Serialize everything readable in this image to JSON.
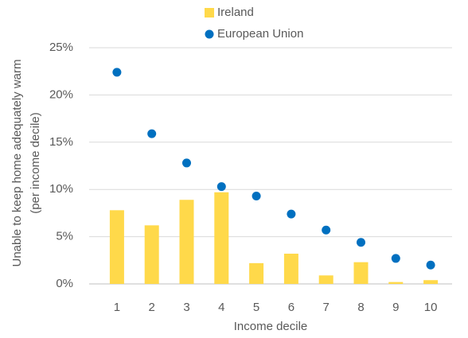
{
  "chart_data": {
    "type": "bar",
    "ylabel": [
      "Unable to keep home adequately warm",
      "(per income decile)"
    ],
    "xlabel": "Income decile",
    "categories": [
      "1",
      "2",
      "3",
      "4",
      "5",
      "6",
      "7",
      "8",
      "9",
      "10"
    ],
    "series": [
      {
        "name": "Ireland",
        "type": "bar",
        "color": "#ffd94a",
        "values": [
          7.8,
          6.2,
          8.9,
          9.7,
          2.2,
          3.2,
          0.9,
          2.3,
          0.2,
          0.4
        ]
      },
      {
        "name": "European Union",
        "type": "scatter",
        "color": "#0070c0",
        "values": [
          22.4,
          15.9,
          12.8,
          10.3,
          9.3,
          7.4,
          5.7,
          4.4,
          2.7,
          2.0
        ]
      }
    ],
    "ylim": [
      0,
      25
    ],
    "yticks": [
      {
        "value": 0,
        "label": "0%"
      },
      {
        "value": 5,
        "label": "5%"
      },
      {
        "value": 10,
        "label": "10%"
      },
      {
        "value": 15,
        "label": "15%"
      },
      {
        "value": 20,
        "label": "20%"
      },
      {
        "value": 25,
        "label": "25%"
      }
    ],
    "grid": true
  }
}
